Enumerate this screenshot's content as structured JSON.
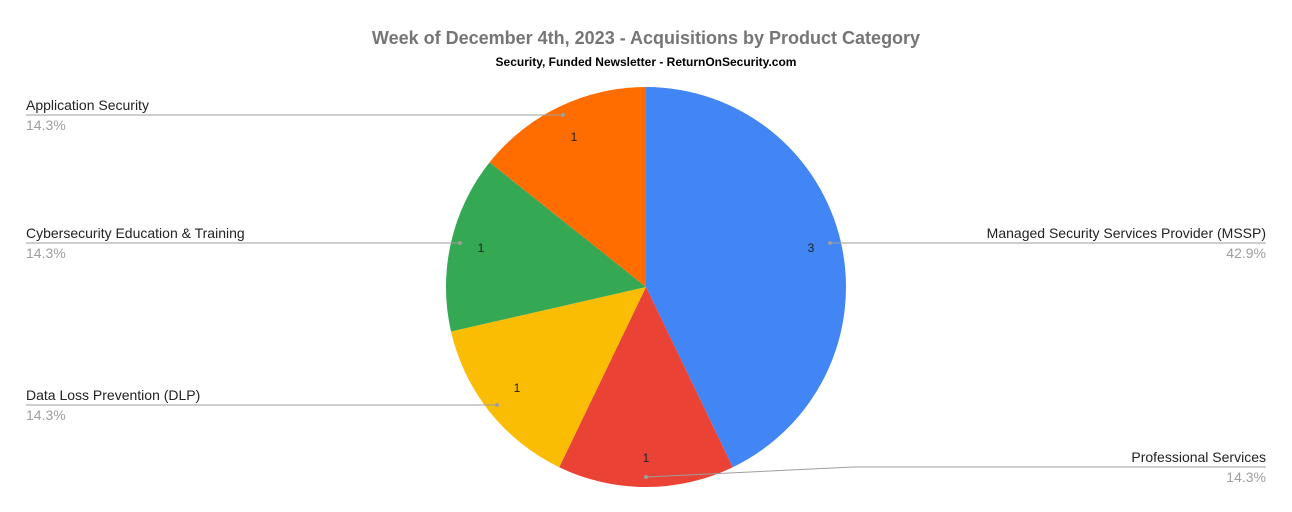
{
  "chart_data": {
    "type": "pie",
    "title": "Week of December 4th, 2023 - Acquisitions by Product Category",
    "subtitle": "Security, Funded Newsletter - ReturnOnSecurity.com",
    "slices": [
      {
        "label": "Managed Security Services Provider (MSSP)",
        "value": 3,
        "percent": "42.9%",
        "color": "#4285f4"
      },
      {
        "label": "Professional Services",
        "value": 1,
        "percent": "14.3%",
        "color": "#ea4335"
      },
      {
        "label": "Data Loss Prevention (DLP)",
        "value": 1,
        "percent": "14.3%",
        "color": "#fbbc04"
      },
      {
        "label": "Cybersecurity Education & Training",
        "value": 1,
        "percent": "14.3%",
        "color": "#34a853"
      },
      {
        "label": "Application Security",
        "value": 1,
        "percent": "14.3%",
        "color": "#ff6d01"
      }
    ],
    "legend": "none",
    "data_labels": "inside"
  }
}
